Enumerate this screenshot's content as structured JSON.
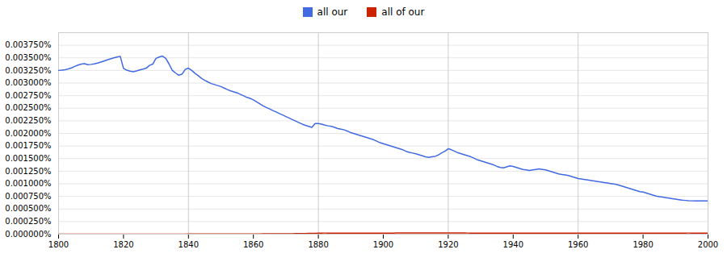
{
  "chart_data": {
    "type": "line",
    "legend": "top",
    "grid": true,
    "xlim": [
      1800,
      2000
    ],
    "xticks": [
      1800,
      1820,
      1840,
      1860,
      1880,
      1900,
      1920,
      1940,
      1960,
      1980,
      2000
    ],
    "ylim": [
      0,
      0.004
    ],
    "yticks": [
      {
        "value": 0,
        "label": "0.000000%"
      },
      {
        "value": 0.00025,
        "label": "0.000250%"
      },
      {
        "value": 0.0005,
        "label": "0.000500%"
      },
      {
        "value": 0.00075,
        "label": "0.000750%"
      },
      {
        "value": 0.001,
        "label": "0.001000%"
      },
      {
        "value": 0.00125,
        "label": "0.001250%"
      },
      {
        "value": 0.0015,
        "label": "0.001500%"
      },
      {
        "value": 0.00175,
        "label": "0.001750%"
      },
      {
        "value": 0.002,
        "label": "0.002000%"
      },
      {
        "value": 0.00225,
        "label": "0.002250%"
      },
      {
        "value": 0.0025,
        "label": "0.002500%"
      },
      {
        "value": 0.00275,
        "label": "0.002750%"
      },
      {
        "value": 0.003,
        "label": "0.003000%"
      },
      {
        "value": 0.00325,
        "label": "0.003250%"
      },
      {
        "value": 0.0035,
        "label": "0.003500%"
      },
      {
        "value": 0.00375,
        "label": "0.003750%"
      }
    ],
    "vlines": [
      1840,
      1880,
      1920,
      1960
    ],
    "x": [
      1800,
      1801,
      1802,
      1803,
      1804,
      1805,
      1806,
      1807,
      1808,
      1809,
      1810,
      1811,
      1812,
      1813,
      1814,
      1815,
      1816,
      1817,
      1818,
      1819,
      1820,
      1821,
      1822,
      1823,
      1824,
      1825,
      1826,
      1827,
      1828,
      1829,
      1830,
      1831,
      1832,
      1833,
      1834,
      1835,
      1836,
      1837,
      1838,
      1839,
      1840,
      1841,
      1842,
      1843,
      1844,
      1845,
      1846,
      1847,
      1848,
      1849,
      1850,
      1851,
      1852,
      1853,
      1854,
      1855,
      1856,
      1857,
      1858,
      1859,
      1860,
      1861,
      1862,
      1863,
      1864,
      1865,
      1866,
      1867,
      1868,
      1869,
      1870,
      1871,
      1872,
      1873,
      1874,
      1875,
      1876,
      1877,
      1878,
      1879,
      1880,
      1881,
      1882,
      1883,
      1884,
      1885,
      1886,
      1887,
      1888,
      1889,
      1890,
      1891,
      1892,
      1893,
      1894,
      1895,
      1896,
      1897,
      1898,
      1899,
      1900,
      1901,
      1902,
      1903,
      1904,
      1905,
      1906,
      1907,
      1908,
      1909,
      1910,
      1911,
      1912,
      1913,
      1914,
      1915,
      1916,
      1917,
      1918,
      1919,
      1920,
      1921,
      1922,
      1923,
      1924,
      1925,
      1926,
      1927,
      1928,
      1929,
      1930,
      1931,
      1932,
      1933,
      1934,
      1935,
      1936,
      1937,
      1938,
      1939,
      1940,
      1941,
      1942,
      1943,
      1944,
      1945,
      1946,
      1947,
      1948,
      1949,
      1950,
      1951,
      1952,
      1953,
      1954,
      1955,
      1956,
      1957,
      1958,
      1959,
      1960,
      1961,
      1962,
      1963,
      1964,
      1965,
      1966,
      1967,
      1968,
      1969,
      1970,
      1971,
      1972,
      1973,
      1974,
      1975,
      1976,
      1977,
      1978,
      1979,
      1980,
      1981,
      1982,
      1983,
      1984,
      1985,
      1986,
      1987,
      1988,
      1989,
      1990,
      1991,
      1992,
      1993,
      1994,
      1995,
      1996,
      1997,
      1998,
      1999,
      2000
    ],
    "series": [
      {
        "name": "all our",
        "color": "#4169e1",
        "values": [
          0.00325,
          0.003255,
          0.003265,
          0.00328,
          0.0033,
          0.00333,
          0.003355,
          0.003375,
          0.003385,
          0.003365,
          0.00337,
          0.00338,
          0.003395,
          0.003415,
          0.003435,
          0.00346,
          0.00348,
          0.0035,
          0.003515,
          0.00353,
          0.00329,
          0.003255,
          0.003235,
          0.003225,
          0.00324,
          0.00326,
          0.003275,
          0.003295,
          0.00335,
          0.003375,
          0.00349,
          0.003515,
          0.003535,
          0.00349,
          0.00338,
          0.003255,
          0.0032,
          0.003155,
          0.003175,
          0.00327,
          0.003295,
          0.00325,
          0.003195,
          0.003145,
          0.003095,
          0.003055,
          0.00302,
          0.00299,
          0.00297,
          0.00295,
          0.00293,
          0.0029,
          0.00287,
          0.002845,
          0.002825,
          0.002805,
          0.002775,
          0.002745,
          0.002715,
          0.002695,
          0.002665,
          0.002625,
          0.002585,
          0.002545,
          0.002515,
          0.002485,
          0.002455,
          0.002425,
          0.002395,
          0.002365,
          0.002335,
          0.002305,
          0.002275,
          0.002245,
          0.002215,
          0.002185,
          0.00216,
          0.00214,
          0.00212,
          0.002195,
          0.002195,
          0.002185,
          0.002165,
          0.00215,
          0.00214,
          0.00212,
          0.002095,
          0.002085,
          0.00207,
          0.002045,
          0.002015,
          0.001995,
          0.001975,
          0.001955,
          0.001935,
          0.001915,
          0.001895,
          0.001875,
          0.001845,
          0.001815,
          0.001795,
          0.001775,
          0.001755,
          0.001735,
          0.001715,
          0.001695,
          0.001675,
          0.001645,
          0.001625,
          0.00161,
          0.001595,
          0.001575,
          0.001555,
          0.001535,
          0.001525,
          0.001535,
          0.001545,
          0.001575,
          0.001615,
          0.001645,
          0.001695,
          0.001675,
          0.001645,
          0.001615,
          0.001595,
          0.001575,
          0.001555,
          0.001535,
          0.001505,
          0.001475,
          0.001455,
          0.001435,
          0.001415,
          0.001395,
          0.001375,
          0.001345,
          0.001325,
          0.001315,
          0.001335,
          0.001355,
          0.001345,
          0.001325,
          0.001305,
          0.001285,
          0.001275,
          0.001265,
          0.001275,
          0.001285,
          0.001295,
          0.001285,
          0.001275,
          0.001255,
          0.001235,
          0.001215,
          0.001195,
          0.001185,
          0.001175,
          0.001165,
          0.001145,
          0.001125,
          0.001105,
          0.001095,
          0.001085,
          0.001075,
          0.001065,
          0.001055,
          0.001045,
          0.001035,
          0.001025,
          0.001015,
          0.001005,
          0.000995,
          0.000985,
          0.000965,
          0.000945,
          0.000925,
          0.000905,
          0.000885,
          0.000865,
          0.000845,
          0.000835,
          0.000815,
          0.000795,
          0.000775,
          0.000755,
          0.000745,
          0.000735,
          0.000725,
          0.000715,
          0.000705,
          0.000695,
          0.000685,
          0.000675,
          0.00067,
          0.000665,
          0.000662,
          0.00066,
          0.00066,
          0.00066,
          0.00066,
          0.00066
        ]
      },
      {
        "name": "all of our",
        "color": "#cc2200",
        "values": [
          2e-06,
          2e-06,
          2e-06,
          2e-06,
          2e-06,
          2e-06,
          2e-06,
          2e-06,
          2e-06,
          2e-06,
          2e-06,
          2e-06,
          2e-06,
          2e-06,
          2e-06,
          2e-06,
          2e-06,
          2e-06,
          2e-06,
          2e-06,
          2e-06,
          2e-06,
          2e-06,
          2e-06,
          2e-06,
          2e-06,
          2e-06,
          2e-06,
          2e-06,
          2e-06,
          2e-06,
          2e-06,
          2e-06,
          2e-06,
          2e-06,
          2e-06,
          2e-06,
          2e-06,
          2e-06,
          2e-06,
          3e-06,
          3e-06,
          3e-06,
          3e-06,
          3e-06,
          3e-06,
          3e-06,
          4e-06,
          4e-06,
          4e-06,
          4e-06,
          4e-06,
          4e-06,
          4e-06,
          5e-06,
          5e-06,
          5e-06,
          5e-06,
          5e-06,
          6e-06,
          6e-06,
          6e-06,
          6e-06,
          7e-06,
          7e-06,
          7e-06,
          7e-06,
          8e-06,
          8e-06,
          9e-06,
          9e-06,
          1e-05,
          1e-05,
          1.1e-05,
          1.2e-05,
          1.3e-05,
          1.4e-05,
          1.5e-05,
          1.6e-05,
          1.8e-05,
          2e-05,
          2.1e-05,
          2.2e-05,
          2.2e-05,
          2.2e-05,
          2.2e-05,
          2.2e-05,
          2.2e-05,
          2.2e-05,
          2.2e-05,
          2.2e-05,
          2.2e-05,
          2.2e-05,
          2.2e-05,
          2.2e-05,
          2.2e-05,
          2.2e-05,
          2.2e-05,
          2.2e-05,
          2.2e-05,
          2.2e-05,
          2.2e-05,
          2.2e-05,
          2.2e-05,
          2.3e-05,
          2.3e-05,
          2.3e-05,
          2.4e-05,
          2.4e-05,
          2.5e-05,
          2.5e-05,
          2.5e-05,
          2.5e-05,
          2.5e-05,
          2.5e-05,
          2.5e-05,
          2.5e-05,
          2.5e-05,
          2.5e-05,
          2.5e-05,
          2.5e-05,
          2.4e-05,
          2.4e-05,
          2.3e-05,
          2.3e-05,
          2.3e-05,
          2.2e-05,
          2.2e-05,
          2.2e-05,
          2.2e-05,
          2.2e-05,
          2.2e-05,
          2.1e-05,
          2.1e-05,
          2.1e-05,
          2.1e-05,
          2.1e-05,
          2e-05,
          2e-05,
          2e-05,
          2e-05,
          2e-05,
          2e-05,
          2e-05,
          1.9e-05,
          1.9e-05,
          1.9e-05,
          1.9e-05,
          1.9e-05,
          1.9e-05,
          1.9e-05,
          1.9e-05,
          1.9e-05,
          1.9e-05,
          1.9e-05,
          1.9e-05,
          1.9e-05,
          1.9e-05,
          1.9e-05,
          1.9e-05,
          1.9e-05,
          1.9e-05,
          1.9e-05,
          1.9e-05,
          1.9e-05,
          1.9e-05,
          1.9e-05,
          1.9e-05,
          1.9e-05,
          1.9e-05,
          1.9e-05,
          1.9e-05,
          1.9e-05,
          1.9e-05,
          1.9e-05,
          1.9e-05,
          1.9e-05,
          1.9e-05,
          1.9e-05,
          1.9e-05,
          1.9e-05,
          1.9e-05,
          1.9e-05,
          1.9e-05,
          2e-05,
          2e-05,
          2e-05,
          2e-05,
          2e-05,
          2.1e-05,
          2.1e-05,
          2.1e-05,
          2.1e-05,
          2.1e-05,
          2.2e-05,
          2.2e-05,
          2.2e-05,
          2.2e-05,
          2.2e-05,
          2.2e-05,
          2.2e-05
        ]
      }
    ]
  }
}
